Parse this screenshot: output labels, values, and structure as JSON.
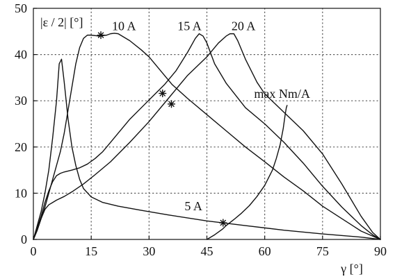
{
  "chart_data": {
    "type": "line",
    "xlabel": "γ [°]",
    "ylabel": "|ε / 2| [°]",
    "xlim": [
      0,
      90
    ],
    "ylim": [
      0,
      50
    ],
    "x_ticks": [
      0,
      15,
      30,
      45,
      60,
      75,
      90
    ],
    "x_tick_labels": [
      "0",
      "15",
      "30",
      "45",
      "60",
      "75",
      "90"
    ],
    "y_ticks": [
      0,
      10,
      20,
      30,
      40,
      50
    ],
    "y_tick_labels": [
      "0",
      "10",
      "20",
      "30",
      "40",
      "50"
    ],
    "grid": "dotted",
    "colors": {
      "line": "#111111",
      "grid": "#555555",
      "text": "#111111"
    },
    "series": [
      {
        "name": "5 A",
        "x": [
          0,
          1,
          2,
          3,
          4,
          5,
          6,
          6.7,
          7.3,
          8,
          9,
          10,
          11,
          12,
          13,
          15,
          18,
          22,
          28,
          35,
          45,
          55,
          65,
          75,
          85,
          90
        ],
        "y": [
          0,
          3,
          6,
          10,
          15,
          22,
          30,
          38,
          39,
          34,
          26,
          20,
          16,
          13,
          11,
          9.2,
          8,
          7.2,
          6.3,
          5.3,
          4,
          3,
          2,
          1.2,
          0.5,
          0
        ]
      },
      {
        "name": "10 A",
        "x": [
          0,
          1,
          2,
          3,
          4,
          5,
          6,
          7,
          8,
          9,
          10,
          11,
          12,
          13,
          14,
          15,
          17,
          19,
          20,
          21,
          22,
          25,
          28,
          30,
          33,
          36,
          40,
          45,
          50,
          55,
          60,
          65,
          70,
          75,
          80,
          85,
          90
        ],
        "y": [
          0,
          2,
          4.5,
          7,
          10,
          13,
          16,
          19,
          23,
          28,
          33,
          38,
          41.5,
          43.5,
          44.2,
          44.2,
          44,
          44.2,
          44.5,
          44.6,
          44.5,
          43,
          41,
          39.5,
          36.5,
          33.5,
          30.5,
          27,
          23.5,
          20,
          16.8,
          13.5,
          10.5,
          7.2,
          4.5,
          1.8,
          0
        ]
      },
      {
        "name": "15 A",
        "x": [
          0,
          1,
          2,
          3,
          4,
          5,
          6,
          7,
          8,
          10,
          12,
          14,
          16,
          18,
          20,
          22,
          25,
          28,
          31,
          34,
          37,
          40,
          42,
          43,
          44,
          45,
          47,
          50,
          55,
          60,
          65,
          70,
          75,
          80,
          85,
          88,
          90
        ],
        "y": [
          0,
          2.5,
          5,
          8,
          10.5,
          12.5,
          13.8,
          14.3,
          14.6,
          15,
          15.5,
          16.3,
          17.5,
          19,
          21,
          23,
          26,
          28.5,
          31,
          33.5,
          36.5,
          40.5,
          43.5,
          44.5,
          44,
          42.5,
          38,
          33.8,
          28.5,
          25,
          21,
          16.5,
          11.5,
          7,
          3,
          1,
          0
        ]
      },
      {
        "name": "20 A",
        "x": [
          0,
          1,
          2,
          3,
          4,
          5,
          6,
          8,
          10,
          13,
          16,
          20,
          25,
          30,
          35,
          40,
          45,
          48,
          50,
          51,
          52,
          53,
          55,
          58,
          60,
          65,
          70,
          75,
          80,
          85,
          88,
          90
        ],
        "y": [
          0,
          2,
          4.5,
          6.5,
          7.5,
          8,
          8.5,
          9.3,
          10.3,
          12,
          14,
          16.8,
          21,
          25.5,
          30.5,
          35.5,
          39.5,
          42.5,
          44,
          44.5,
          44.5,
          43,
          39,
          34,
          31.5,
          27.5,
          23.5,
          18.5,
          12,
          5,
          1.5,
          0
        ]
      },
      {
        "name": "max Nm/A",
        "x": [
          45,
          47,
          49,
          50,
          52,
          54,
          56,
          58,
          60,
          62,
          63,
          64,
          64.8,
          65.3,
          65.6,
          65.8
        ],
        "y": [
          0,
          1,
          2.2,
          3,
          4.3,
          5.7,
          7.3,
          9.3,
          11.7,
          15,
          17.5,
          20.5,
          24,
          27,
          28.5,
          29
        ]
      }
    ],
    "markers": [
      {
        "x": 17.5,
        "y": 44.2
      },
      {
        "x": 33.5,
        "y": 31.6
      },
      {
        "x": 35.8,
        "y": 29.3
      },
      {
        "x": 49.2,
        "y": 3.6
      }
    ],
    "annotations": [
      {
        "id": "5A",
        "text": "5 A",
        "x": 41.5,
        "y": 7.2
      },
      {
        "id": "10A",
        "text": "10 A",
        "x": 23.5,
        "y": 46.2
      },
      {
        "id": "15A",
        "text": "15 A",
        "x": 40.5,
        "y": 46.2
      },
      {
        "id": "20A",
        "text": "20 A",
        "x": 54.5,
        "y": 46.2
      },
      {
        "id": "maxnma",
        "text": "max Nm/A",
        "x": 64.5,
        "y": 31.5
      }
    ]
  }
}
